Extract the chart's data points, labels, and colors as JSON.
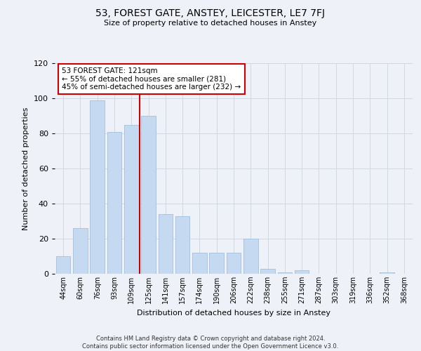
{
  "title": "53, FOREST GATE, ANSTEY, LEICESTER, LE7 7FJ",
  "subtitle": "Size of property relative to detached houses in Anstey",
  "xlabel": "Distribution of detached houses by size in Anstey",
  "ylabel": "Number of detached properties",
  "categories": [
    "44sqm",
    "60sqm",
    "76sqm",
    "93sqm",
    "109sqm",
    "125sqm",
    "141sqm",
    "157sqm",
    "174sqm",
    "190sqm",
    "206sqm",
    "222sqm",
    "238sqm",
    "255sqm",
    "271sqm",
    "287sqm",
    "303sqm",
    "319sqm",
    "336sqm",
    "352sqm",
    "368sqm"
  ],
  "values": [
    10,
    26,
    99,
    81,
    85,
    90,
    34,
    33,
    12,
    12,
    12,
    20,
    3,
    1,
    2,
    0,
    0,
    0,
    0,
    1,
    0
  ],
  "bar_color": "#c5d9f1",
  "bar_edge_color": "#a8c4e0",
  "grid_color": "#d0d8e4",
  "background_color": "#eef2f8",
  "annotation_line1": "53 FOREST GATE: 121sqm",
  "annotation_line2": "← 55% of detached houses are smaller (281)",
  "annotation_line3": "45% of semi-detached houses are larger (232) →",
  "annotation_box_color": "#ffffff",
  "annotation_box_edge_color": "#cc0000",
  "property_line_x": 4.5,
  "ylim": [
    0,
    120
  ],
  "yticks": [
    0,
    20,
    40,
    60,
    80,
    100,
    120
  ],
  "footer_line1": "Contains HM Land Registry data © Crown copyright and database right 2024.",
  "footer_line2": "Contains public sector information licensed under the Open Government Licence v3.0."
}
